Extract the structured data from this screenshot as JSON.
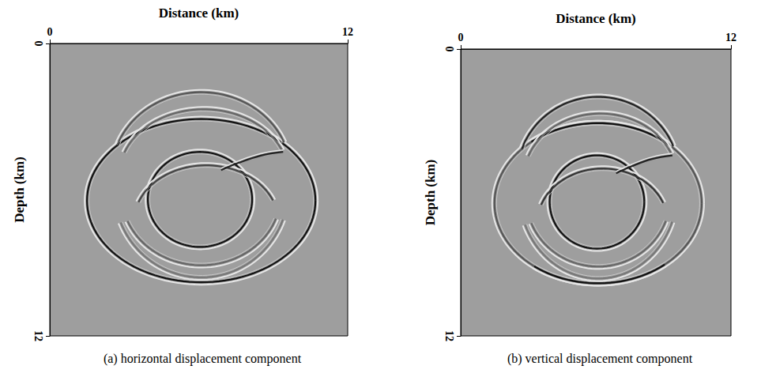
{
  "chart_data": [
    {
      "type": "wavefield",
      "caption": "(a) horizontal displacement component",
      "xlabel": "Distance (km)",
      "ylabel": "Depth (km)",
      "xlim": [
        0,
        12
      ],
      "ylim": [
        0,
        12
      ],
      "xticks": [
        0,
        12
      ],
      "yticks": [
        0,
        12
      ],
      "wavefronts": [
        {
          "cx": 6.1,
          "cy": 6.45,
          "rx": 4.6,
          "ry": 3.35,
          "from": 0,
          "to": 360,
          "color": "#111111"
        },
        {
          "cx": 6.1,
          "cy": 5.3,
          "rx": 3.6,
          "ry": 3.3,
          "from": 200,
          "to": 340,
          "color": "#555555"
        },
        {
          "cx": 6.2,
          "cy": 5.4,
          "rx": 3.4,
          "ry": 2.7,
          "from": 200,
          "to": 340,
          "color": "#666666"
        },
        {
          "cx": 6.05,
          "cy": 6.4,
          "rx": 2.1,
          "ry": 1.95,
          "from": 0,
          "to": 360,
          "color": "#111111"
        },
        {
          "cx": 6.3,
          "cy": 7.3,
          "rx": 2.9,
          "ry": 2.3,
          "from": 200,
          "to": 340,
          "color": "#444444"
        },
        {
          "cx": 6.1,
          "cy": 6.2,
          "rx": 3.2,
          "ry": 2.9,
          "from": 20,
          "to": 160,
          "color": "#666666"
        },
        {
          "cx": 6.1,
          "cy": 6.0,
          "rx": 3.5,
          "ry": 3.6,
          "from": 20,
          "to": 160,
          "color": "#777777"
        }
      ],
      "rays": [
        {
          "points": [
            [
              9.4,
              4.45
            ],
            [
              8.5,
              4.6
            ],
            [
              7.6,
              4.9
            ],
            [
              6.9,
              5.2
            ]
          ],
          "color": "#222222"
        }
      ]
    },
    {
      "type": "wavefield",
      "caption": "(b) vertical displacement component",
      "xlabel": "Distance (km)",
      "ylabel": "Depth (km)",
      "xlim": [
        0,
        12
      ],
      "ylim": [
        0,
        12
      ],
      "xticks": [
        0,
        12
      ],
      "yticks": [
        0,
        12
      ],
      "wavefronts": [
        {
          "cx": 6.1,
          "cy": 6.45,
          "rx": 4.6,
          "ry": 3.35,
          "from": 0,
          "to": 360,
          "color": "#555555"
        },
        {
          "cx": 6.1,
          "cy": 6.45,
          "rx": 4.6,
          "ry": 3.35,
          "from": 230,
          "to": 310,
          "color": "#111111"
        },
        {
          "cx": 6.1,
          "cy": 6.45,
          "rx": 4.6,
          "ry": 3.35,
          "from": 50,
          "to": 130,
          "color": "#111111"
        },
        {
          "cx": 6.1,
          "cy": 5.3,
          "rx": 3.6,
          "ry": 3.3,
          "from": 200,
          "to": 340,
          "color": "#222222"
        },
        {
          "cx": 6.2,
          "cy": 5.4,
          "rx": 3.4,
          "ry": 2.7,
          "from": 200,
          "to": 340,
          "color": "#666666"
        },
        {
          "cx": 6.05,
          "cy": 6.4,
          "rx": 2.1,
          "ry": 1.95,
          "from": 0,
          "to": 360,
          "color": "#111111"
        },
        {
          "cx": 6.3,
          "cy": 7.3,
          "rx": 2.9,
          "ry": 2.3,
          "from": 200,
          "to": 340,
          "color": "#333333"
        },
        {
          "cx": 6.1,
          "cy": 6.2,
          "rx": 3.2,
          "ry": 2.9,
          "from": 20,
          "to": 160,
          "color": "#666666"
        },
        {
          "cx": 6.1,
          "cy": 6.0,
          "rx": 3.5,
          "ry": 3.6,
          "from": 20,
          "to": 160,
          "color": "#777777"
        }
      ],
      "rays": [
        {
          "points": [
            [
              9.4,
              4.45
            ],
            [
              8.5,
              4.6
            ],
            [
              7.6,
              4.9
            ],
            [
              6.9,
              5.2
            ]
          ],
          "color": "#222222"
        }
      ]
    }
  ]
}
